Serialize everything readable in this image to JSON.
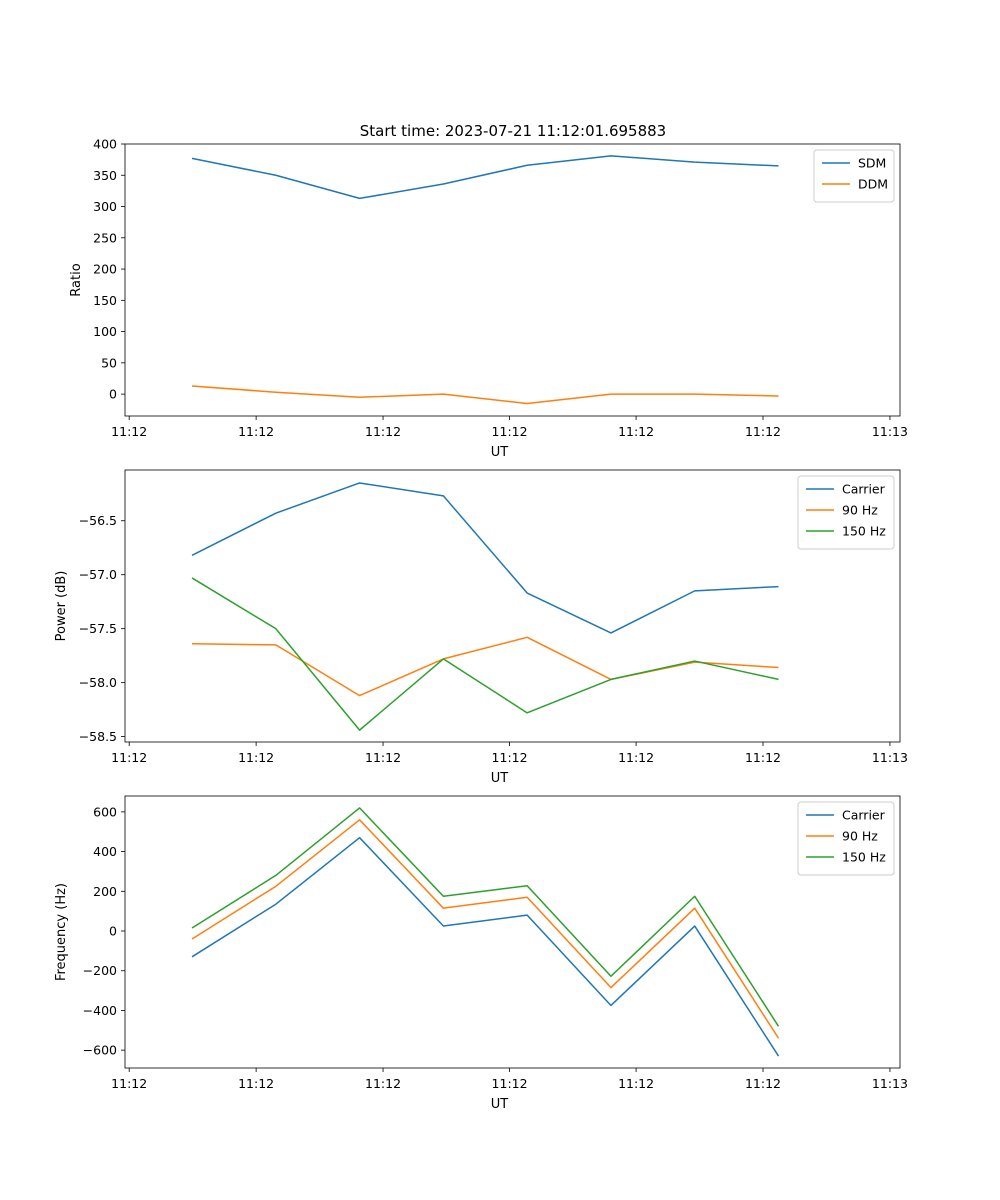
{
  "figure_title": "Start time: 2023-07-21 11:12:01.695883",
  "chart_data": [
    {
      "type": "line",
      "title": "Start time: 2023-07-21 11:12:01.695883",
      "xlabel": "UT",
      "ylabel": "Ratio",
      "x": [
        0,
        1,
        2,
        3,
        4,
        5,
        6,
        7
      ],
      "xlim": [
        -0.8,
        8.45
      ],
      "xticks": [
        -0.75,
        0.765,
        2.28,
        3.79,
        5.3,
        6.815,
        8.33
      ],
      "xtick_labels": [
        "11:12",
        "11:12",
        "11:12",
        "11:12",
        "11:12",
        "11:12",
        "11:13"
      ],
      "ylim": [
        -35,
        400
      ],
      "yticks": [
        0,
        50,
        100,
        150,
        200,
        250,
        300,
        350,
        400
      ],
      "ytick_labels": [
        "0",
        "50",
        "100",
        "150",
        "200",
        "250",
        "300",
        "350",
        "400"
      ],
      "legend": "top-right",
      "series": [
        {
          "name": "SDM",
          "color": "#1f77b4",
          "values": [
            377,
            350,
            313,
            336,
            366,
            381,
            371,
            365
          ]
        },
        {
          "name": "DDM",
          "color": "#ff7f0e",
          "values": [
            13,
            3,
            -5,
            0,
            -15,
            0,
            0,
            -3
          ]
        }
      ]
    },
    {
      "type": "line",
      "title": "",
      "xlabel": "UT",
      "ylabel": "Power (dB)",
      "x": [
        0,
        1,
        2,
        3,
        4,
        5,
        6,
        7
      ],
      "xlim": [
        -0.8,
        8.45
      ],
      "xticks": [
        -0.75,
        0.765,
        2.28,
        3.79,
        5.3,
        6.815,
        8.33
      ],
      "xtick_labels": [
        "11:12",
        "11:12",
        "11:12",
        "11:12",
        "11:12",
        "11:12",
        "11:13"
      ],
      "ylim": [
        -58.55,
        -56.03
      ],
      "yticks": [
        -58.5,
        -58.0,
        -57.5,
        -57.0,
        -56.5
      ],
      "ytick_labels": [
        "−58.5",
        "−58.0",
        "−57.5",
        "−57.0",
        "−56.5"
      ],
      "legend": "top-right",
      "series": [
        {
          "name": "Carrier",
          "color": "#1f77b4",
          "values": [
            -56.82,
            -56.43,
            -56.15,
            -56.27,
            -57.17,
            -57.54,
            -57.15,
            -57.11
          ]
        },
        {
          "name": "90 Hz",
          "color": "#ff7f0e",
          "values": [
            -57.64,
            -57.65,
            -58.12,
            -57.78,
            -57.58,
            -57.97,
            -57.81,
            -57.86
          ]
        },
        {
          "name": "150 Hz",
          "color": "#2ca02c",
          "values": [
            -57.03,
            -57.5,
            -58.44,
            -57.78,
            -58.28,
            -57.97,
            -57.8,
            -57.97
          ]
        }
      ]
    },
    {
      "type": "line",
      "title": "",
      "xlabel": "UT",
      "ylabel": "Frequency (Hz)",
      "x": [
        0,
        1,
        2,
        3,
        4,
        5,
        6,
        7
      ],
      "xlim": [
        -0.8,
        8.45
      ],
      "xticks": [
        -0.75,
        0.765,
        2.28,
        3.79,
        5.3,
        6.815,
        8.33
      ],
      "xtick_labels": [
        "11:12",
        "11:12",
        "11:12",
        "11:12",
        "11:12",
        "11:12",
        "11:13"
      ],
      "ylim": [
        -690,
        680
      ],
      "yticks": [
        -600,
        -400,
        -200,
        0,
        200,
        400,
        600
      ],
      "ytick_labels": [
        "−600",
        "−400",
        "−200",
        "0",
        "200",
        "400",
        "600"
      ],
      "legend": "top-right",
      "series": [
        {
          "name": "Carrier",
          "color": "#1f77b4",
          "values": [
            -130,
            135,
            470,
            25,
            80,
            -375,
            25,
            -630
          ]
        },
        {
          "name": "90 Hz",
          "color": "#ff7f0e",
          "values": [
            -40,
            225,
            560,
            115,
            170,
            -285,
            115,
            -540
          ]
        },
        {
          "name": "150 Hz",
          "color": "#2ca02c",
          "values": [
            15,
            280,
            620,
            175,
            228,
            -228,
            175,
            -480
          ]
        }
      ]
    }
  ]
}
